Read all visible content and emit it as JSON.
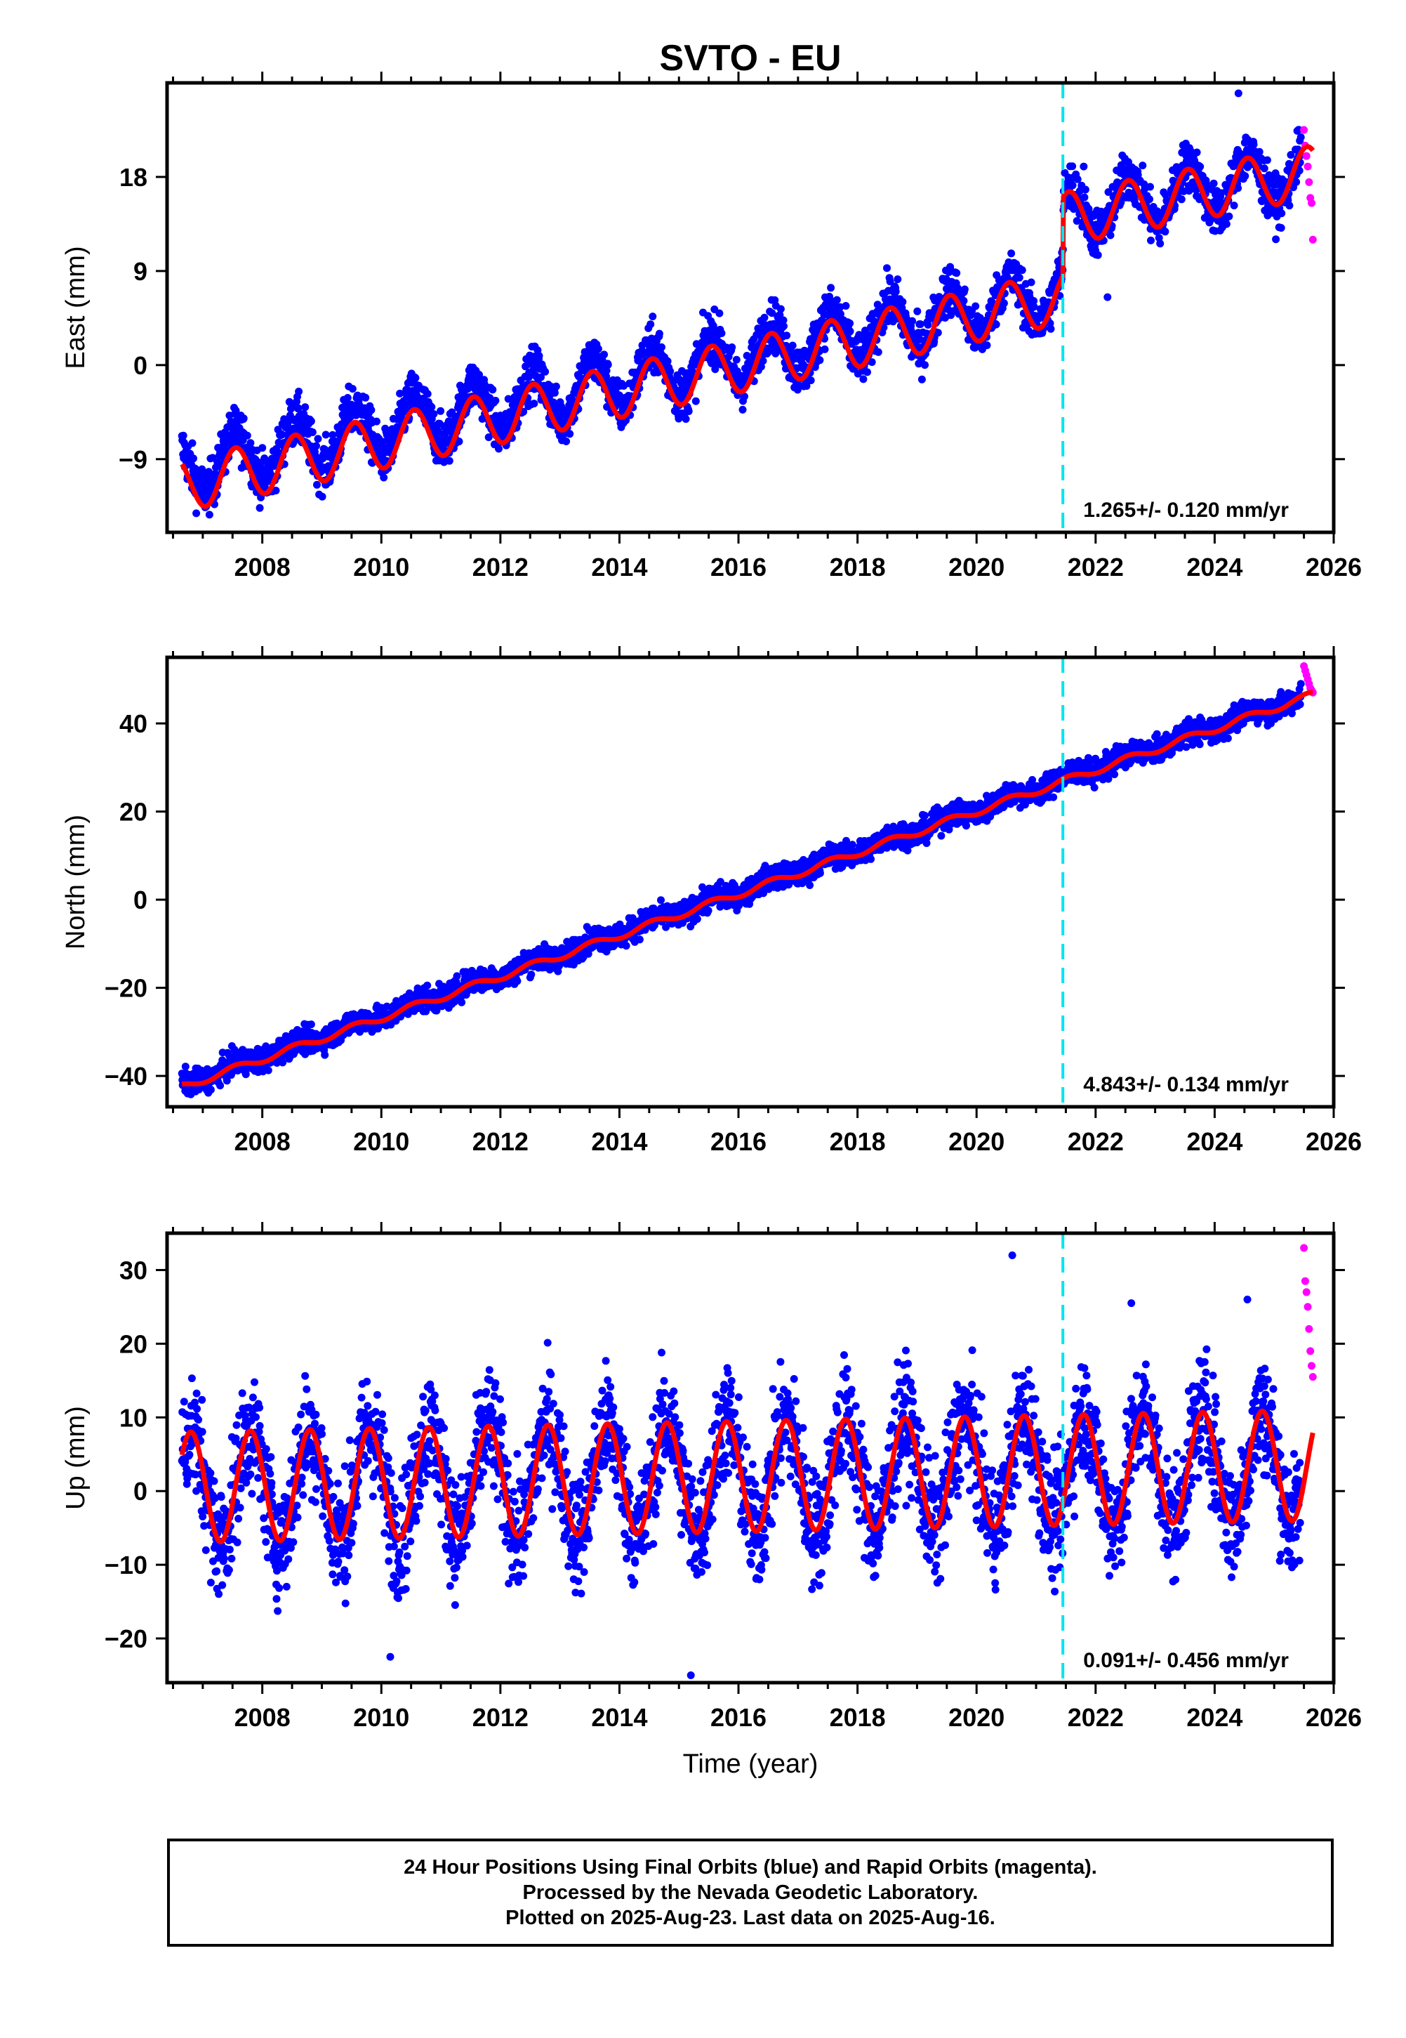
{
  "chart_data": [
    {
      "type": "scatter",
      "title": "SVTO - EU",
      "ylabel": "East (mm)",
      "xlim": [
        2006.4,
        2026.0
      ],
      "ylim": [
        -16,
        27
      ],
      "xticks": [
        2008,
        2010,
        2012,
        2014,
        2016,
        2018,
        2020,
        2022,
        2024,
        2026
      ],
      "yticks": [
        -9,
        0,
        9,
        18
      ],
      "rate_text": "1.265+/- 0.120 mm/yr",
      "event_line_x": 2021.45,
      "series": [
        {
          "name": "Final Orbits",
          "color": "#0000ff",
          "pattern": {
            "start": 2006.65,
            "end": 2025.45,
            "trend": [
              [
                2006.65,
                -10.0
              ],
              [
                2021.45,
                7.0
              ],
              [
                2021.46,
                14.5
              ],
              [
                2025.45,
                18.5
              ]
            ],
            "amplitude": 2.5,
            "phase": 0.3,
            "noise": 1.2,
            "spikes": [
              [
                2021.8,
                19.0
              ],
              [
                2024.4,
                26.0
              ],
              [
                2022.2,
                6.5
              ]
            ]
          }
        },
        {
          "name": "Rapid Orbits",
          "color": "#ff00ff",
          "pattern": {
            "start": 2025.5,
            "end": 2025.65,
            "values": [
              22.5,
              21.0,
              20.0,
              19.0,
              17.5,
              16.0,
              15.5,
              12.0
            ]
          }
        },
        {
          "name": "Model",
          "color": "#ff0000",
          "type": "line",
          "pattern": {
            "trend": [
              [
                2006.65,
                -11.5
              ],
              [
                2021.45,
                6.5
              ],
              [
                2021.46,
                14.0
              ],
              [
                2025.65,
                18.5
              ]
            ],
            "amplitude": 2.5,
            "phase": 0.3
          }
        }
      ]
    },
    {
      "type": "scatter",
      "title": "",
      "ylabel": "North (mm)",
      "xlim": [
        2006.4,
        2026.0
      ],
      "ylim": [
        -47,
        55
      ],
      "xticks": [
        2008,
        2010,
        2012,
        2014,
        2016,
        2018,
        2020,
        2022,
        2024,
        2026
      ],
      "yticks": [
        -40,
        -20,
        0,
        20,
        40
      ],
      "rate_text": "4.843+/- 0.134 mm/yr",
      "event_line_x": 2021.45,
      "series": [
        {
          "name": "Final Orbits",
          "color": "#0000ff",
          "pattern": {
            "start": 2006.65,
            "end": 2025.45,
            "trend": [
              [
                2006.65,
                -42.0
              ],
              [
                2025.45,
                46.0
              ]
            ],
            "amplitude": 0.8,
            "phase": 0.3,
            "noise": 1.4,
            "spikes": []
          }
        },
        {
          "name": "Rapid Orbits",
          "color": "#ff00ff",
          "pattern": {
            "start": 2025.5,
            "end": 2025.65,
            "values": [
              53.0,
              52.0,
              51.0,
              50.0,
              49.0,
              48.0,
              47.5,
              47.0
            ]
          }
        },
        {
          "name": "Model",
          "color": "#ff0000",
          "type": "line",
          "pattern": {
            "trend": [
              [
                2006.65,
                -42.5
              ],
              [
                2025.65,
                46.5
              ]
            ],
            "amplitude": 0.8,
            "phase": 0.3
          }
        }
      ]
    },
    {
      "type": "scatter",
      "title": "",
      "xlabel": "Time (year)",
      "ylabel": "Up (mm)",
      "xlim": [
        2006.4,
        2026.0
      ],
      "ylim": [
        -26,
        35
      ],
      "xticks": [
        2008,
        2010,
        2012,
        2014,
        2016,
        2018,
        2020,
        2022,
        2024,
        2026
      ],
      "yticks": [
        -20,
        -10,
        0,
        10,
        20,
        30
      ],
      "rate_text": "0.091+/- 0.456 mm/yr",
      "event_line_x": 2021.45,
      "series": [
        {
          "name": "Final Orbits",
          "color": "#0000ff",
          "pattern": {
            "start": 2006.65,
            "end": 2025.45,
            "trend": [
              [
                2006.65,
                0.5
              ],
              [
                2025.45,
                3.5
              ]
            ],
            "amplitude": 7.5,
            "phase": 0.55,
            "noise": 4.0,
            "spikes": [
              [
                2020.6,
                32.0
              ],
              [
                2015.2,
                -25.0
              ],
              [
                2010.15,
                -22.5
              ],
              [
                2022.6,
                25.5
              ],
              [
                2024.55,
                26.0
              ]
            ]
          }
        },
        {
          "name": "Rapid Orbits",
          "color": "#ff00ff",
          "pattern": {
            "start": 2025.5,
            "end": 2025.65,
            "values": [
              33.0,
              28.5,
              27.0,
              25.0,
              22.0,
              19.0,
              17.0,
              15.5
            ]
          }
        },
        {
          "name": "Model",
          "color": "#ff0000",
          "type": "line",
          "pattern": {
            "trend": [
              [
                2006.65,
                0.5
              ],
              [
                2025.65,
                3.5
              ]
            ],
            "amplitude": 7.5,
            "phase": 0.55
          }
        }
      ]
    }
  ],
  "footer": {
    "line1": "24 Hour Positions Using Final Orbits (blue) and Rapid Orbits (magenta).",
    "line2": "Processed by the Nevada Geodetic Laboratory.",
    "line3": "Plotted on 2025-Aug-23. Last data on 2025-Aug-16."
  }
}
